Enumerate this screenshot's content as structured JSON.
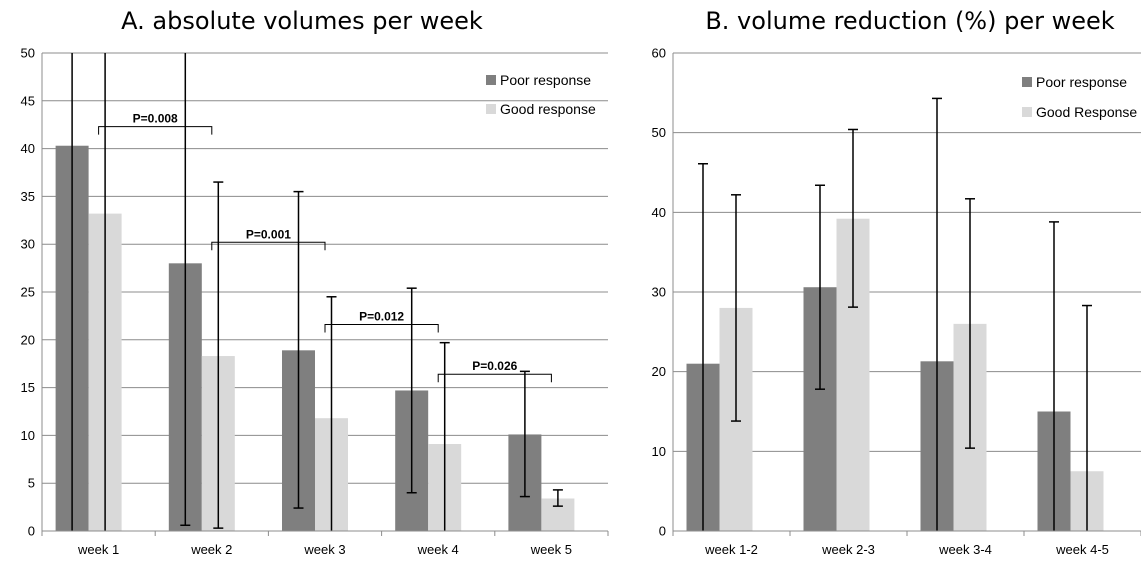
{
  "chart_data": [
    {
      "type": "bar",
      "title": "A. absolute volumes per week",
      "xlabel": "",
      "ylabel": "",
      "ylim": [
        0,
        50
      ],
      "yticks": [
        0,
        5,
        10,
        15,
        20,
        25,
        30,
        35,
        40,
        45,
        50
      ],
      "categories": [
        "week 1",
        "week 2",
        "week 3",
        "week 4",
        "week 5"
      ],
      "grid": true,
      "legend_position": "top-right",
      "series": [
        {
          "name": "Poor response",
          "color": "#7f7f7f",
          "values": [
            40.3,
            28.0,
            18.9,
            14.7,
            10.1
          ],
          "error_low": [
            0,
            0.6,
            2.4,
            4.0,
            3.6
          ],
          "error_high": [
            50,
            50,
            35.5,
            25.4,
            16.7
          ]
        },
        {
          "name": "Good response",
          "color": "#d9d9d9",
          "values": [
            33.2,
            18.3,
            11.8,
            9.1,
            3.4
          ],
          "error_low": [
            0,
            0.3,
            0,
            0,
            2.6
          ],
          "error_high": [
            50,
            36.5,
            24.5,
            19.7,
            4.3
          ]
        }
      ],
      "annotations": [
        {
          "text": "P=0.008",
          "from": 0,
          "to": 1,
          "y": 42.3
        },
        {
          "text": "P=0.001",
          "from": 1,
          "to": 2,
          "y": 30.2
        },
        {
          "text": "P=0.012",
          "from": 2,
          "to": 3,
          "y": 21.6
        },
        {
          "text": "P=0.026",
          "from": 3,
          "to": 4,
          "y": 16.4
        }
      ]
    },
    {
      "type": "bar",
      "title": "B. volume reduction (%) per week",
      "xlabel": "",
      "ylabel": "",
      "ylim": [
        0,
        60
      ],
      "yticks": [
        0,
        10,
        20,
        30,
        40,
        50,
        60
      ],
      "categories": [
        "week 1-2",
        "week 2-3",
        "week 3-4",
        "week 4-5"
      ],
      "grid": true,
      "legend_position": "top-right",
      "series": [
        {
          "name": "Poor response",
          "color": "#7f7f7f",
          "values": [
            21.0,
            30.6,
            21.3,
            15.0
          ],
          "error_low": [
            0,
            17.8,
            0,
            0
          ],
          "error_high": [
            46.1,
            43.4,
            54.3,
            38.8
          ]
        },
        {
          "name": "Good Response",
          "color": "#d9d9d9",
          "values": [
            28.0,
            39.2,
            26.0,
            7.5
          ],
          "error_low": [
            13.8,
            28.1,
            10.4,
            0
          ],
          "error_high": [
            42.2,
            50.4,
            41.7,
            28.3
          ]
        }
      ],
      "annotations": []
    }
  ]
}
